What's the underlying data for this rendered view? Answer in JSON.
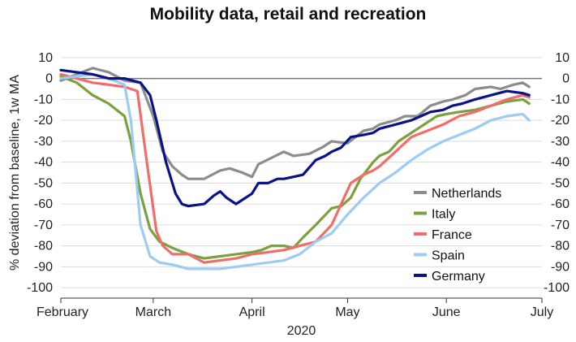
{
  "chart_data": {
    "type": "line",
    "title": "Mobility data, retail and recreation",
    "xlabel": "2020",
    "ylabel": "% deviation from baseline, 1w MA",
    "ylim": [
      -105,
      15
    ],
    "yticks": [
      10,
      0,
      -10,
      -20,
      -30,
      -40,
      -50,
      -60,
      -70,
      -80,
      -90,
      -100
    ],
    "x_tick_labels": [
      "February",
      "March",
      "April",
      "May",
      "June",
      "July"
    ],
    "x_tick_days": [
      0,
      29,
      60,
      90,
      121,
      151
    ],
    "x_range_days": [
      0,
      151
    ],
    "grid": true,
    "legend_position": "bottom-right",
    "series": [
      {
        "name": "Netherlands",
        "color": "#8c8c8c",
        "x": [
          0,
          5,
          10,
          15,
          20,
          25,
          29,
          32,
          35,
          38,
          40,
          45,
          50,
          53,
          57,
          60,
          62,
          66,
          70,
          73,
          78,
          82,
          85,
          90,
          95,
          98,
          100,
          105,
          108,
          112,
          116,
          120,
          123,
          127,
          130,
          135,
          138,
          142,
          145,
          147
        ],
        "y": [
          -1,
          2,
          5,
          3,
          -1,
          -2,
          -18,
          -35,
          -42,
          -46,
          -48,
          -48,
          -44,
          -43,
          -45,
          -47,
          -41,
          -38,
          -35,
          -37,
          -36,
          -33,
          -30,
          -31,
          -25,
          -24,
          -22,
          -20,
          -18,
          -18,
          -13,
          -11,
          -10,
          -8,
          -5,
          -4,
          -5,
          -3,
          -2,
          -4
        ]
      },
      {
        "name": "Italy",
        "color": "#7aa13e",
        "x": [
          0,
          5,
          10,
          15,
          20,
          22,
          25,
          28,
          31,
          35,
          40,
          45,
          50,
          55,
          60,
          63,
          66,
          70,
          73,
          76,
          80,
          85,
          88,
          91,
          94,
          98,
          100,
          103,
          106,
          110,
          114,
          118,
          121,
          125,
          130,
          135,
          140,
          145,
          147
        ],
        "y": [
          1,
          -2,
          -8,
          -12,
          -18,
          -30,
          -55,
          -72,
          -78,
          -81,
          -84,
          -86,
          -85,
          -84,
          -83,
          -82,
          -80,
          -80,
          -81,
          -76,
          -70,
          -62,
          -61,
          -57,
          -48,
          -40,
          -37,
          -35,
          -30,
          -26,
          -22,
          -18,
          -17,
          -16,
          -15,
          -13,
          -11,
          -10,
          -12
        ]
      },
      {
        "name": "France",
        "color": "#f26d6a",
        "x": [
          0,
          5,
          10,
          15,
          20,
          24,
          27,
          30,
          32,
          35,
          40,
          45,
          50,
          55,
          60,
          65,
          70,
          75,
          80,
          85,
          88,
          91,
          95,
          98,
          100,
          105,
          110,
          115,
          120,
          125,
          130,
          135,
          140,
          145,
          147
        ],
        "y": [
          2,
          0,
          -2,
          -3,
          -4,
          -6,
          -40,
          -73,
          -80,
          -84,
          -84,
          -88,
          -87,
          -86,
          -84,
          -83,
          -82,
          -80,
          -78,
          -70,
          -60,
          -50,
          -46,
          -44,
          -42,
          -35,
          -28,
          -25,
          -22,
          -18,
          -16,
          -13,
          -10,
          -8,
          -9
        ]
      },
      {
        "name": "Spain",
        "color": "#9ccbf5",
        "x": [
          0,
          5,
          10,
          15,
          20,
          22,
          25,
          28,
          31,
          35,
          40,
          45,
          50,
          55,
          60,
          65,
          70,
          75,
          80,
          85,
          90,
          95,
          100,
          105,
          110,
          115,
          120,
          125,
          130,
          135,
          140,
          145,
          147
        ],
        "y": [
          0,
          1,
          2,
          0,
          -3,
          -20,
          -70,
          -85,
          -88,
          -89,
          -91,
          -91,
          -91,
          -90,
          -89,
          -88,
          -87,
          -84,
          -78,
          -74,
          -65,
          -57,
          -50,
          -45,
          -39,
          -34,
          -30,
          -27,
          -24,
          -20,
          -18,
          -17,
          -20
        ]
      },
      {
        "name": "Germany",
        "color": "#0a128a",
        "x": [
          0,
          5,
          10,
          15,
          20,
          25,
          28,
          30,
          33,
          36,
          38,
          40,
          45,
          48,
          50,
          52,
          55,
          57,
          60,
          62,
          65,
          68,
          70,
          73,
          76,
          80,
          83,
          85,
          88,
          91,
          95,
          98,
          100,
          105,
          110,
          113,
          116,
          120,
          123,
          126,
          130,
          135,
          140,
          145,
          147
        ],
        "y": [
          4,
          3,
          2,
          0,
          0,
          -2,
          -8,
          -20,
          -40,
          -55,
          -60,
          -61,
          -60,
          -56,
          -54,
          -57,
          -60,
          -58,
          -55,
          -50,
          -50,
          -48,
          -48,
          -47,
          -46,
          -39,
          -37,
          -35,
          -33,
          -28,
          -27,
          -26,
          -24,
          -22,
          -20,
          -18,
          -16,
          -15,
          -13,
          -12,
          -10,
          -8,
          -6,
          -7,
          -8
        ]
      }
    ]
  }
}
